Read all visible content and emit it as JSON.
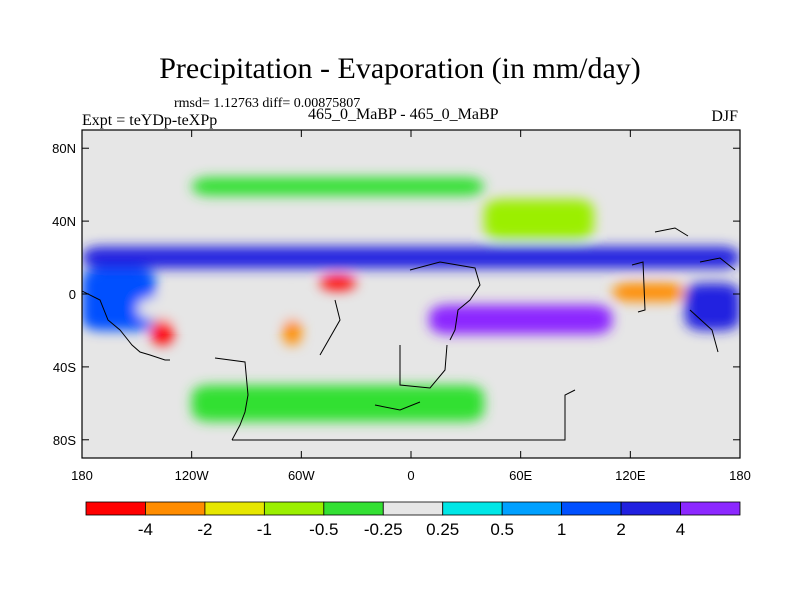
{
  "header": {
    "title": "Precipitation - Evaporation (in mm/day)",
    "stats": "rmsd= 1.12763 diff= 0.00875807",
    "left_label": "Expt = teYDp-teXPp",
    "center_label": "465_0_MaBP - 465_0_MaBP",
    "right_label": "DJF"
  },
  "chart_data": {
    "type": "heatmap",
    "title": "Precipitation - Evaporation (in mm/day)",
    "x_ticks": [
      "180",
      "120W",
      "60W",
      "0",
      "60E",
      "120E",
      "180"
    ],
    "x_tick_values": [
      -180,
      -120,
      -60,
      0,
      60,
      120,
      180
    ],
    "y_ticks": [
      "80N",
      "40N",
      "0",
      "40S",
      "80S"
    ],
    "y_tick_values": [
      80,
      40,
      0,
      -40,
      -80
    ],
    "xlim": [
      -180,
      180
    ],
    "ylim": [
      -90,
      90
    ],
    "colorbar": {
      "labels": [
        "-4",
        "-2",
        "-1",
        "-0.5",
        "-0.25",
        "0.25",
        "0.5",
        "1",
        "2",
        "4"
      ],
      "colors": [
        "#ff0000",
        "#ff8c00",
        "#e6e600",
        "#9bef00",
        "#33e033",
        "#e6e6e6",
        "#00e6e6",
        "#00a0ff",
        "#0050ff",
        "#2020e0",
        "#8c28ff"
      ]
    },
    "regions": [
      {
        "lon": [
          -180,
          180
        ],
        "lat": [
          14,
          26
        ],
        "bin": 9
      },
      {
        "lon": [
          -180,
          -140
        ],
        "lat": [
          -20,
          14
        ],
        "bin": 8
      },
      {
        "lon": [
          -150,
          -60
        ],
        "lat": [
          -14,
          -2
        ],
        "bin": 5
      },
      {
        "lon": [
          -142,
          -130
        ],
        "lat": [
          -28,
          -14
        ],
        "bin": 0
      },
      {
        "lon": [
          -70,
          -60
        ],
        "lat": [
          -28,
          -14
        ],
        "bin": 1
      },
      {
        "lon": [
          -50,
          -30
        ],
        "lat": [
          2,
          10
        ],
        "bin": 0
      },
      {
        "lon": [
          10,
          110
        ],
        "lat": [
          -22,
          -6
        ],
        "bin": 10
      },
      {
        "lon": [
          110,
          150
        ],
        "lat": [
          -4,
          6
        ],
        "bin": 1
      },
      {
        "lon": [
          150,
          180
        ],
        "lat": [
          -20,
          6
        ],
        "bin": 9
      },
      {
        "lon": [
          -120,
          40
        ],
        "lat": [
          54,
          64
        ],
        "bin": 4
      },
      {
        "lon": [
          -120,
          40
        ],
        "lat": [
          -70,
          -50
        ],
        "bin": 4
      },
      {
        "lon": [
          40,
          100
        ],
        "lat": [
          30,
          52
        ],
        "bin": 3
      }
    ]
  }
}
